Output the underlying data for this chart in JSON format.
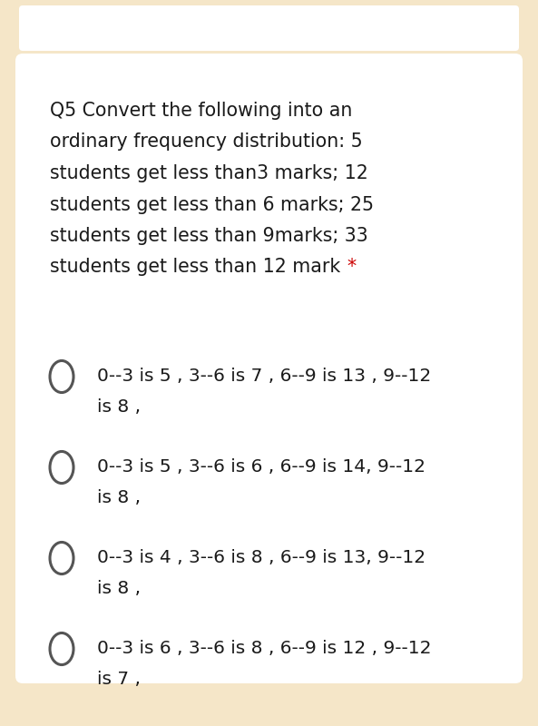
{
  "bg_outer": "#f5e6c8",
  "bg_card": "#ffffff",
  "top_bar_color": "#ffffff",
  "question_lines": [
    "Q5 Convert the following into an",
    "ordinary frequency distribution: 5",
    "students get less than3 marks; 12",
    "students get less than 6 marks; 25",
    "students get less than 9marks; 33",
    "students get less than 12 mark"
  ],
  "asterisk": "*",
  "options": [
    [
      "0--3 is 5 , 3--6 is 7 , 6--9 is 13 , 9--12",
      "is 8 ,"
    ],
    [
      "0--3 is 5 , 3--6 is 6 , 6--9 is 14, 9--12",
      "is 8 ,"
    ],
    [
      "0--3 is 4 , 3--6 is 8 , 6--9 is 13, 9--12",
      "is 8 ,"
    ],
    [
      "0--3 is 6 , 3--6 is 8 , 6--9 is 12 , 9--12",
      "is 7 ,"
    ]
  ],
  "question_fontsize": 14.8,
  "option_fontsize": 14.5,
  "question_color": "#1a1a1a",
  "option_color": "#1a1a1a",
  "asterisk_color": "#cc0000",
  "radio_edge_color": "#555555",
  "figsize": [
    5.93,
    8.0
  ],
  "dpi": 100
}
